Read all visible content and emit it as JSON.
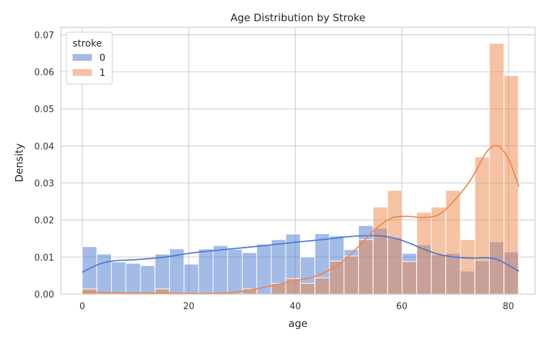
{
  "chart_data": {
    "type": "histogram",
    "title": "Age Distribution by Stroke",
    "xlabel": "age",
    "ylabel": "Density",
    "xlim": [
      -4,
      85
    ],
    "ylim": [
      0,
      0.072
    ],
    "xticks": [
      0,
      20,
      40,
      60,
      80
    ],
    "yticks": [
      0.0,
      0.01,
      0.02,
      0.03,
      0.04,
      0.05,
      0.06,
      0.07
    ],
    "ytick_labels": [
      "0.00",
      "0.01",
      "0.02",
      "0.03",
      "0.04",
      "0.05",
      "0.06",
      "0.07"
    ],
    "grid": true,
    "legend": {
      "title": "stroke",
      "position": "top-left"
    },
    "bin_edges": [
      0,
      2.73,
      5.46,
      8.19,
      10.92,
      13.65,
      16.38,
      19.11,
      21.84,
      24.57,
      27.3,
      30.03,
      32.76,
      35.49,
      38.22,
      40.95,
      43.68,
      46.41,
      49.14,
      51.87,
      54.6,
      57.33,
      60.06,
      62.79,
      65.52,
      68.25,
      70.98,
      73.71,
      76.44,
      79.17,
      81.9
    ],
    "series": [
      {
        "name": "0",
        "color": "#4878d0",
        "values": [
          0.0128,
          0.0108,
          0.0087,
          0.0083,
          0.0077,
          0.0108,
          0.0122,
          0.0081,
          0.0122,
          0.0131,
          0.0121,
          0.0112,
          0.0135,
          0.0147,
          0.0162,
          0.01,
          0.0163,
          0.0157,
          0.012,
          0.0185,
          0.0178,
          0.0152,
          0.011,
          0.0133,
          0.0106,
          0.011,
          0.0062,
          0.009,
          0.0141,
          0.0114
        ],
        "kde": {
          "x": [
            0,
            3,
            6,
            10,
            15,
            20,
            25,
            30,
            35,
            40,
            45,
            50,
            55,
            58,
            61,
            64,
            67,
            70,
            73,
            76,
            78,
            80,
            82
          ],
          "y": [
            0.0059,
            0.008,
            0.009,
            0.0093,
            0.0099,
            0.011,
            0.0118,
            0.0125,
            0.0132,
            0.014,
            0.0147,
            0.0155,
            0.0158,
            0.0153,
            0.014,
            0.0122,
            0.0107,
            0.01,
            0.0097,
            0.0098,
            0.0093,
            0.0078,
            0.0062
          ]
        }
      },
      {
        "name": "1",
        "color": "#ee854a",
        "values": [
          0.0014,
          0.0,
          0.0,
          0.0,
          0.0,
          0.0014,
          0.0,
          0.0,
          0.0,
          0.0,
          0.0,
          0.0014,
          0.0,
          0.0029,
          0.0042,
          0.0029,
          0.0044,
          0.0089,
          0.0103,
          0.0147,
          0.0235,
          0.028,
          0.0088,
          0.0221,
          0.0235,
          0.028,
          0.0147,
          0.037,
          0.0677,
          0.059
        ],
        "kde": {
          "x": [
            0,
            5,
            10,
            15,
            20,
            25,
            28,
            31,
            34,
            37,
            40,
            43,
            46,
            49,
            52,
            55,
            58,
            61,
            64,
            67,
            70,
            73,
            76,
            78,
            80,
            82
          ],
          "y": [
            0.0006,
            0.0004,
            0.0003,
            0.0003,
            0.0002,
            0.0002,
            0.0004,
            0.001,
            0.0018,
            0.0027,
            0.0036,
            0.0045,
            0.0062,
            0.009,
            0.013,
            0.0175,
            0.0205,
            0.021,
            0.0207,
            0.0215,
            0.0255,
            0.031,
            0.0385,
            0.04,
            0.0365,
            0.029
          ]
        }
      }
    ]
  }
}
